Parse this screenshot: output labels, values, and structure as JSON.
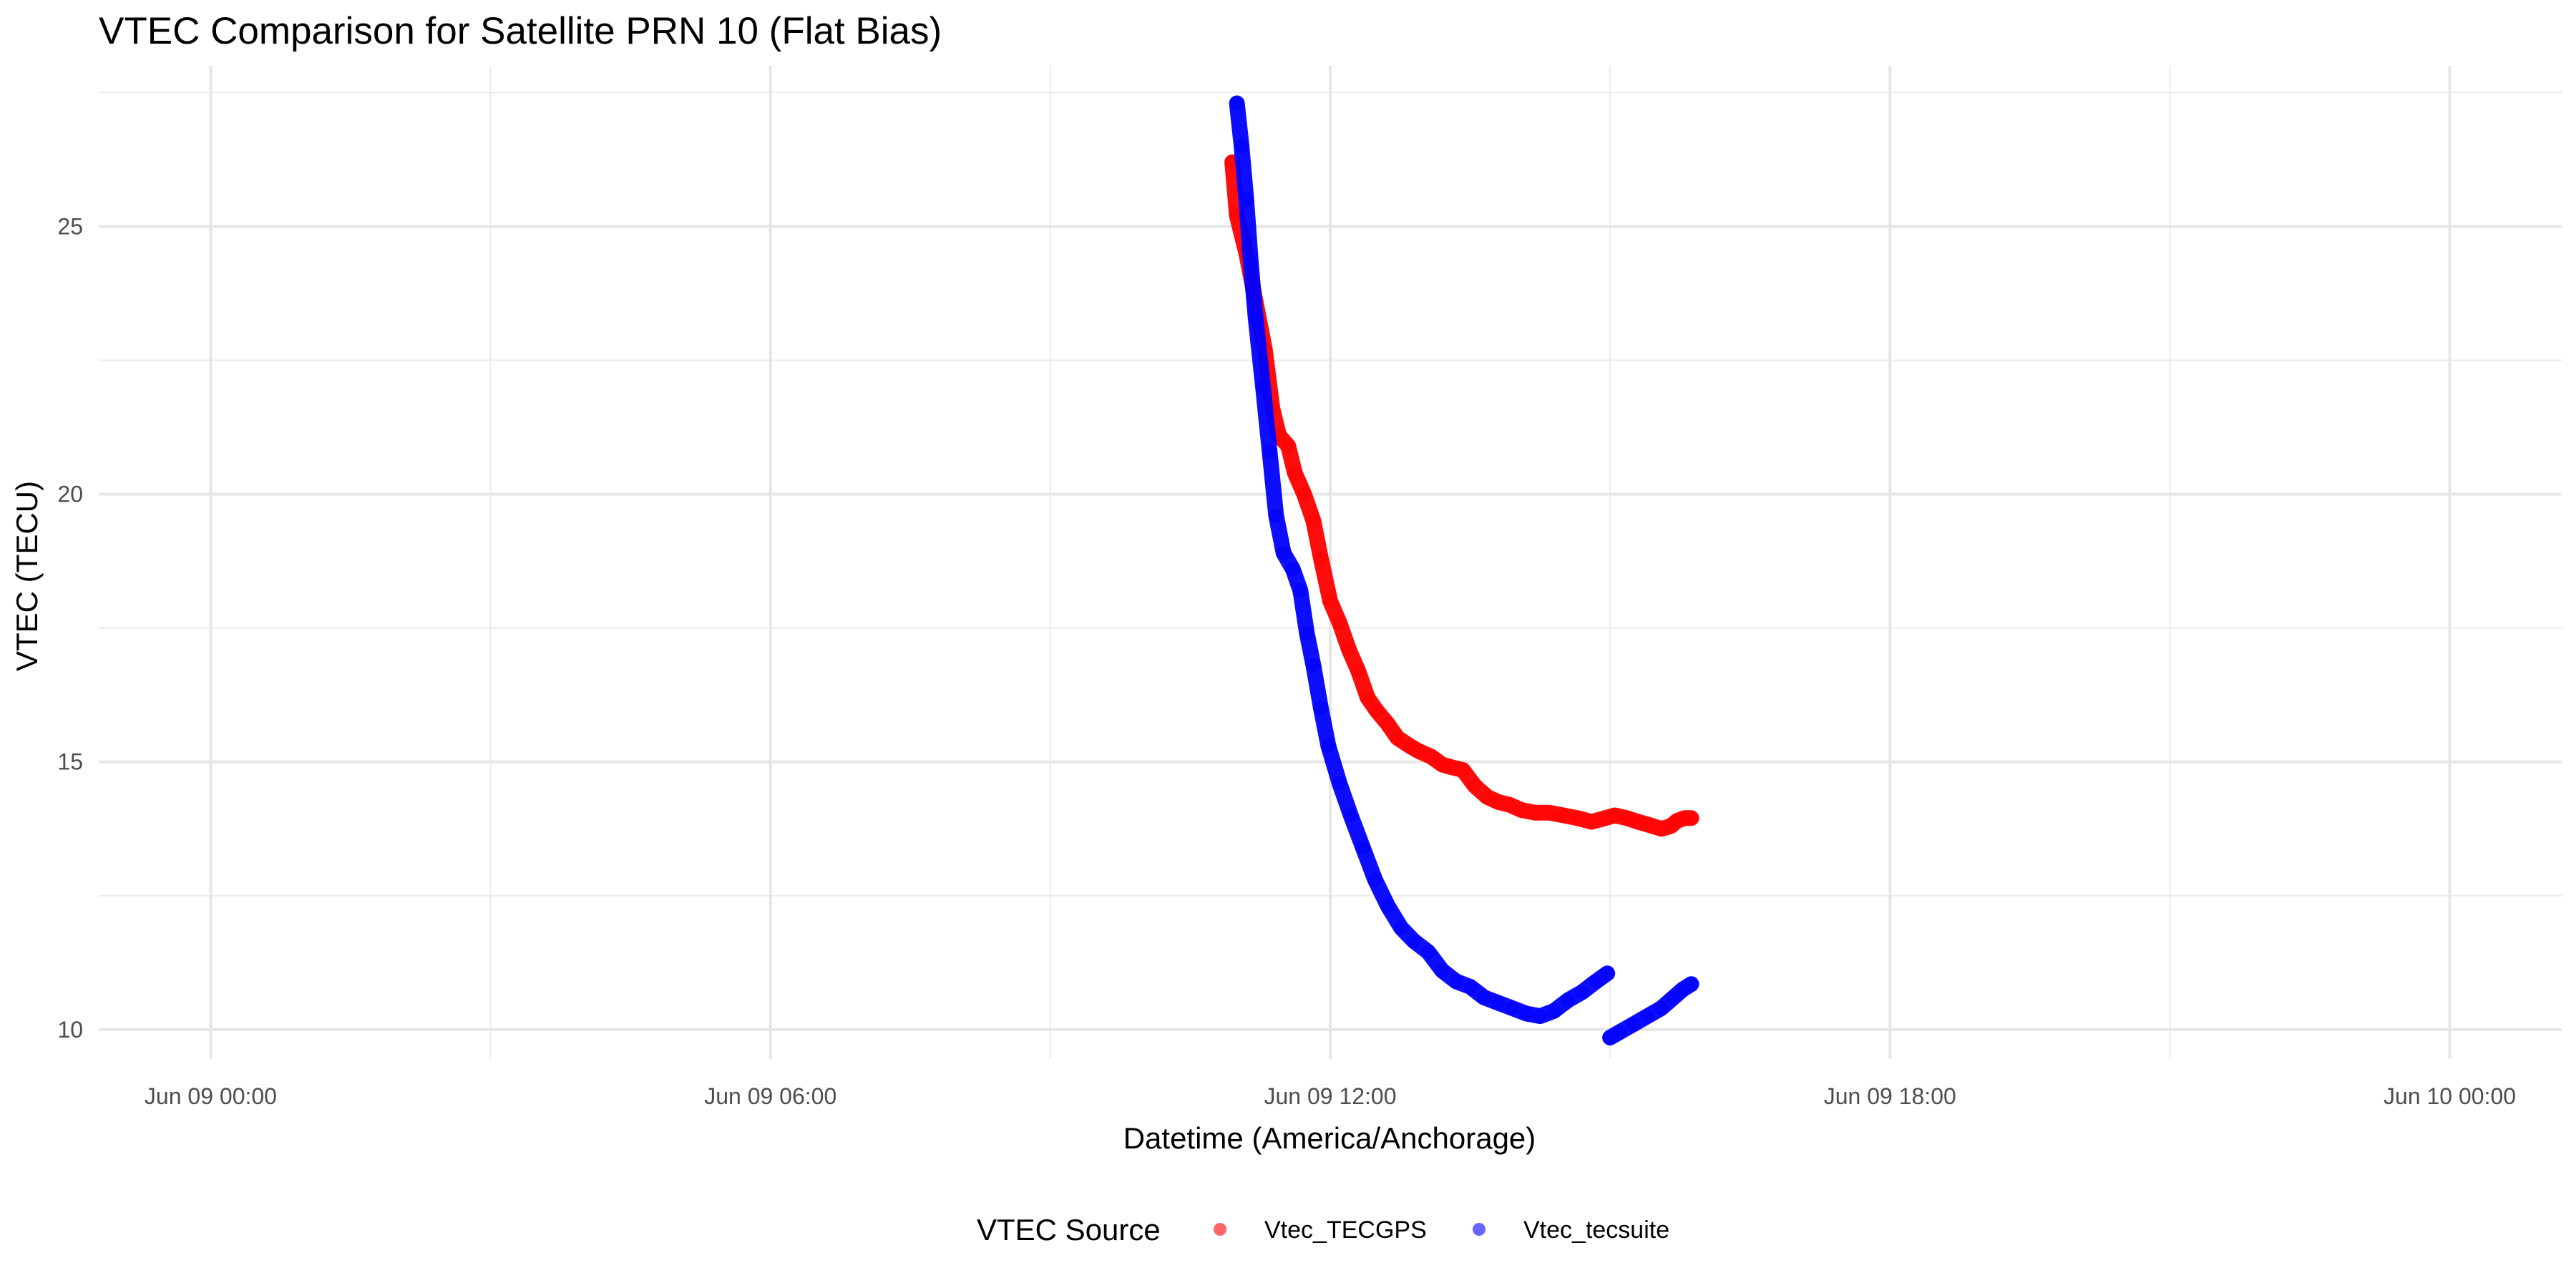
{
  "chart_data": {
    "type": "line",
    "title": "VTEC Comparison for Satellite PRN 10 (Flat Bias)",
    "xlabel": "Datetime (America/Anchorage)",
    "ylabel": "VTEC (TECU)",
    "x_ticks": [
      "Jun 09 00:00",
      "Jun 09 06:00",
      "Jun 09 12:00",
      "Jun 09 18:00",
      "Jun 10 00:00"
    ],
    "x_tick_hours": [
      0,
      6,
      12,
      18,
      24
    ],
    "xlim_hours": [
      -1.2,
      25.2
    ],
    "y_ticks": [
      10,
      15,
      20,
      25
    ],
    "ylim": [
      9.45,
      28.0
    ],
    "grid": true,
    "legend": {
      "title": "VTEC Source",
      "position": "bottom"
    },
    "series": [
      {
        "name": "Vtec_TECGPS",
        "color": "#ff0000",
        "segments": [
          [
            [
              10.95,
              26.2
            ],
            [
              11.0,
              25.2
            ],
            [
              11.1,
              24.5
            ],
            [
              11.2,
              23.6
            ],
            [
              11.3,
              22.7
            ],
            [
              11.38,
              21.6
            ],
            [
              11.45,
              21.1
            ],
            [
              11.55,
              20.9
            ],
            [
              11.62,
              20.4
            ],
            [
              11.72,
              20.0
            ],
            [
              11.82,
              19.5
            ],
            [
              11.9,
              18.8
            ],
            [
              12.0,
              18.0
            ],
            [
              12.1,
              17.6
            ],
            [
              12.2,
              17.1
            ],
            [
              12.3,
              16.7
            ],
            [
              12.4,
              16.2
            ],
            [
              12.5,
              15.95
            ],
            [
              12.62,
              15.7
            ],
            [
              12.72,
              15.45
            ],
            [
              12.85,
              15.3
            ],
            [
              12.95,
              15.2
            ],
            [
              13.08,
              15.1
            ],
            [
              13.2,
              14.95
            ],
            [
              13.3,
              14.9
            ],
            [
              13.42,
              14.85
            ],
            [
              13.55,
              14.55
            ],
            [
              13.68,
              14.35
            ],
            [
              13.8,
              14.25
            ],
            [
              13.92,
              14.2
            ],
            [
              14.05,
              14.1
            ],
            [
              14.2,
              14.05
            ],
            [
              14.35,
              14.05
            ],
            [
              14.5,
              14.0
            ],
            [
              14.65,
              13.95
            ],
            [
              14.8,
              13.88
            ],
            [
              14.95,
              13.95
            ],
            [
              15.05,
              14.0
            ],
            [
              15.18,
              13.95
            ],
            [
              15.3,
              13.88
            ],
            [
              15.42,
              13.82
            ],
            [
              15.55,
              13.75
            ],
            [
              15.65,
              13.8
            ],
            [
              15.72,
              13.9
            ],
            [
              15.8,
              13.95
            ],
            [
              15.87,
              13.95
            ]
          ]
        ]
      },
      {
        "name": "Vtec_tecsuite",
        "color": "#0000ff",
        "segments": [
          [
            [
              11.0,
              27.3
            ],
            [
              11.05,
              26.5
            ],
            [
              11.1,
              25.5
            ],
            [
              11.15,
              24.3
            ],
            [
              11.2,
              23.3
            ],
            [
              11.28,
              22.0
            ],
            [
              11.35,
              20.8
            ],
            [
              11.42,
              19.6
            ],
            [
              11.5,
              18.9
            ],
            [
              11.6,
              18.6
            ],
            [
              11.68,
              18.2
            ],
            [
              11.75,
              17.4
            ],
            [
              11.82,
              16.8
            ],
            [
              11.9,
              16.0
            ],
            [
              11.98,
              15.3
            ],
            [
              12.1,
              14.6
            ],
            [
              12.22,
              14.0
            ],
            [
              12.35,
              13.4
            ],
            [
              12.48,
              12.8
            ],
            [
              12.62,
              12.3
            ],
            [
              12.76,
              11.9
            ],
            [
              12.9,
              11.65
            ],
            [
              13.05,
              11.45
            ],
            [
              13.2,
              11.1
            ],
            [
              13.35,
              10.9
            ],
            [
              13.5,
              10.8
            ],
            [
              13.65,
              10.6
            ],
            [
              13.8,
              10.5
            ],
            [
              13.95,
              10.4
            ],
            [
              14.1,
              10.3
            ],
            [
              14.25,
              10.25
            ],
            [
              14.4,
              10.35
            ],
            [
              14.55,
              10.55
            ],
            [
              14.7,
              10.7
            ],
            [
              14.85,
              10.9
            ],
            [
              14.97,
              11.05
            ]
          ],
          [
            [
              15.0,
              9.85
            ],
            [
              15.1,
              9.95
            ],
            [
              15.25,
              10.1
            ],
            [
              15.4,
              10.25
            ],
            [
              15.55,
              10.4
            ],
            [
              15.68,
              10.6
            ],
            [
              15.78,
              10.75
            ],
            [
              15.87,
              10.85
            ]
          ]
        ]
      }
    ]
  }
}
